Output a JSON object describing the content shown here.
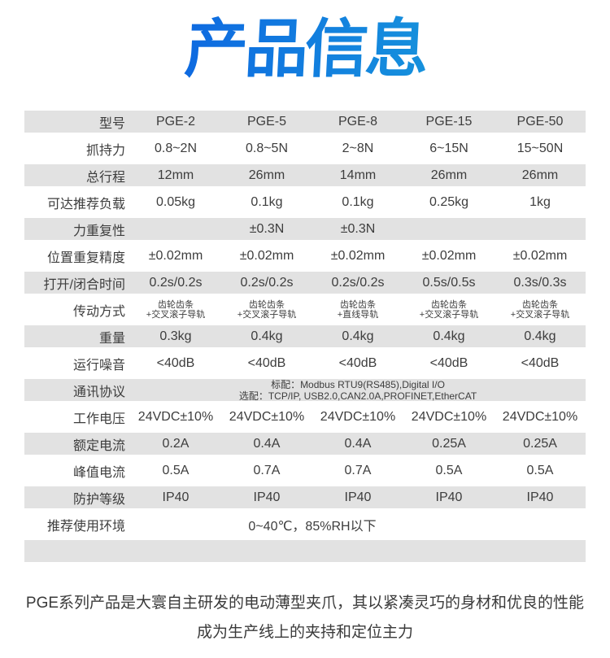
{
  "title": "产品信息",
  "title_colors": {
    "left": "#0c5ee2",
    "right": "#189cdb"
  },
  "table": {
    "row_gray_color": "#e2e2e2",
    "rows": [
      {
        "label": "型号",
        "cells": [
          "PGE-2",
          "PGE-5",
          "PGE-8",
          "PGE-15",
          "PGE-50"
        ]
      },
      {
        "label": "抓持力",
        "cells": [
          "0.8~2N",
          "0.8~5N",
          "2~8N",
          "6~15N",
          "15~50N"
        ]
      },
      {
        "label": "总行程",
        "cells": [
          "12mm",
          "26mm",
          "14mm",
          "26mm",
          "26mm"
        ]
      },
      {
        "label": "可达推荐负载",
        "cells": [
          "0.05kg",
          "0.1kg",
          "0.1kg",
          "0.25kg",
          "1kg"
        ]
      },
      {
        "label": "力重复性",
        "cells": [
          "",
          "±0.3N",
          "±0.3N",
          "",
          ""
        ]
      },
      {
        "label": "位置重复精度",
        "cells": [
          "±0.02mm",
          "±0.02mm",
          "±0.02mm",
          "±0.02mm",
          "±0.02mm"
        ]
      },
      {
        "label": "打开/闭合时间",
        "cells": [
          "0.2s/0.2s",
          "0.2s/0.2s",
          "0.2s/0.2s",
          "0.5s/0.5s",
          "0.3s/0.3s"
        ]
      },
      {
        "label": "传动方式",
        "cells2": [
          {
            "l1": "齿轮齿条",
            "l2": "+交叉滚子导轨"
          },
          {
            "l1": "齿轮齿条",
            "l2": "+交叉滚子导轨"
          },
          {
            "l1": "齿轮齿条",
            "l2": "+直线导轨"
          },
          {
            "l1": "齿轮齿条",
            "l2": "+交叉滚子导轨"
          },
          {
            "l1": "齿轮齿条",
            "l2": "+交叉滚子导轨"
          }
        ]
      },
      {
        "label": "重量",
        "cells": [
          "0.3kg",
          "0.4kg",
          "0.4kg",
          "0.4kg",
          "0.4kg"
        ]
      },
      {
        "label": "运行噪音",
        "cells": [
          "<40dB",
          "<40dB",
          "<40dB",
          "<40dB",
          "<40dB"
        ]
      },
      {
        "label": "通讯协议",
        "span": {
          "l1": "标配：Modbus RTU9(RS485),Digital I/O",
          "l2": "选配：TCP/IP, USB2.0,CAN2.0A,PROFINET,EtherCAT"
        }
      },
      {
        "label": "工作电压",
        "cells": [
          "24VDC±10%",
          "24VDC±10%",
          "24VDC±10%",
          "24VDC±10%",
          "24VDC±10%"
        ]
      },
      {
        "label": "额定电流",
        "cells": [
          "0.2A",
          "0.4A",
          "0.4A",
          "0.25A",
          "0.25A"
        ]
      },
      {
        "label": "峰值电流",
        "cells": [
          "0.5A",
          "0.7A",
          "0.7A",
          "0.5A",
          "0.5A"
        ]
      },
      {
        "label": "防护等级",
        "cells": [
          "IP40",
          "IP40",
          "IP40",
          "IP40",
          "IP40"
        ]
      },
      {
        "label": "推荐使用环境",
        "span_text": "0~40℃，85%RH以下"
      }
    ]
  },
  "footer": {
    "line1": "PGE系列产品是大寰自主研发的电动薄型夹爪，其以紧凑灵巧的身材和优良的性能",
    "line2": "成为生产线上的夹持和定位主力"
  }
}
